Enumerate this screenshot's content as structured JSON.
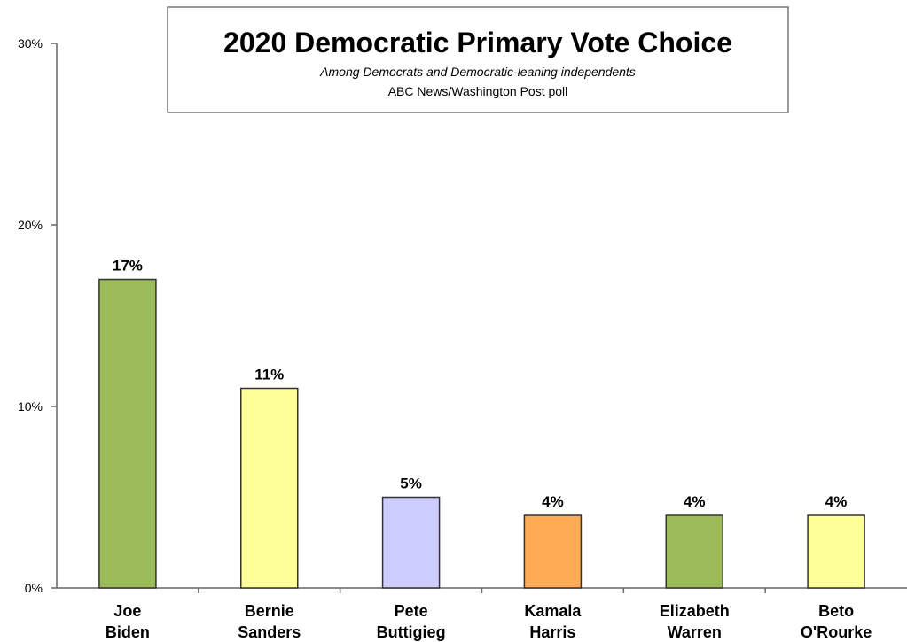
{
  "chart_data": {
    "type": "bar",
    "title": "2020 Democratic Primary Vote Choice",
    "subtitle": "Among Democrats and Democratic-leaning independents",
    "source": "ABC News/Washington Post poll",
    "categories": [
      [
        "Joe",
        "Biden"
      ],
      [
        "Bernie",
        "Sanders"
      ],
      [
        "Pete",
        "Buttigieg"
      ],
      [
        "Kamala",
        "Harris"
      ],
      [
        "Elizabeth",
        "Warren"
      ],
      [
        "Beto",
        "O'Rourke"
      ]
    ],
    "values": [
      17,
      11,
      5,
      4,
      4,
      4
    ],
    "data_labels": [
      "17%",
      "11%",
      "5%",
      "4%",
      "4%",
      "4%"
    ],
    "bar_colors": [
      "#9bbb59",
      "#ffff99",
      "#ccccff",
      "#ffaa55",
      "#9bbb59",
      "#ffff99"
    ],
    "ylim": [
      0,
      30
    ],
    "yticks": [
      0,
      10,
      20,
      30
    ],
    "ytick_labels": [
      "0%",
      "10%",
      "20%",
      "30%"
    ],
    "grid": false,
    "legend": "none"
  }
}
